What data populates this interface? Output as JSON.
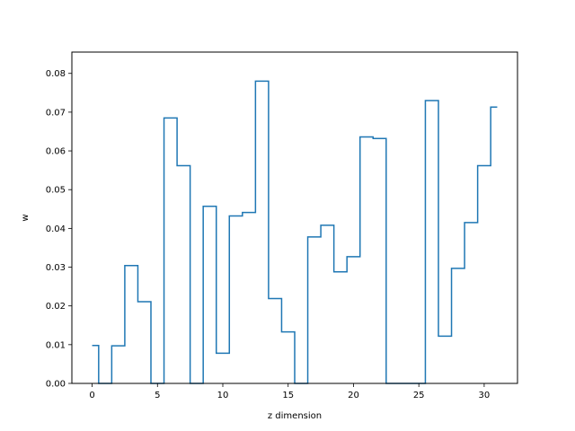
{
  "chart_data": {
    "type": "line",
    "style": "step-mid",
    "title": "",
    "xlabel": "z dimension",
    "ylabel": "w",
    "xlim": [
      -1.55,
      32.55
    ],
    "ylim": [
      0,
      0.0855
    ],
    "x_ticks": [
      0,
      5,
      10,
      15,
      20,
      25,
      30
    ],
    "x_tick_labels": [
      "0",
      "5",
      "10",
      "15",
      "20",
      "25",
      "30"
    ],
    "y_ticks": [
      0,
      0.01,
      0.02,
      0.03,
      0.04,
      0.05,
      0.06,
      0.07,
      0.08
    ],
    "y_tick_labels": [
      "0.00",
      "0.01",
      "0.02",
      "0.03",
      "0.04",
      "0.05",
      "0.06",
      "0.07",
      "0.08"
    ],
    "grid": false,
    "line_color": "#1f77b4",
    "series": [
      {
        "x": [
          0,
          1,
          2,
          3,
          4,
          5,
          6,
          7,
          8,
          9,
          10,
          11,
          12,
          13,
          14,
          15,
          16,
          17,
          18,
          19,
          20,
          21,
          22,
          23,
          24,
          25,
          26,
          27,
          28,
          29,
          30,
          31
        ],
        "values": [
          0.0098,
          0.0,
          0.0097,
          0.0304,
          0.0211,
          0.0,
          0.0685,
          0.0562,
          0.0,
          0.0457,
          0.0078,
          0.0432,
          0.0441,
          0.078,
          0.0219,
          0.0133,
          0.0,
          0.0378,
          0.0408,
          0.0288,
          0.0327,
          0.0636,
          0.0632,
          0.0,
          0.0,
          0.0,
          0.073,
          0.0122,
          0.0297,
          0.0415,
          0.0562,
          0.0713
        ]
      }
    ]
  }
}
